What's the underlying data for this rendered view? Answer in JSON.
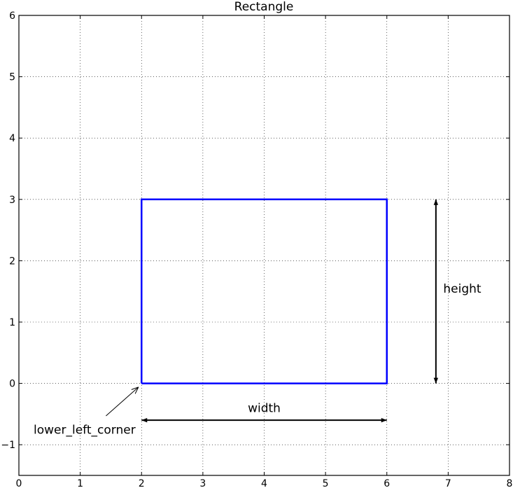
{
  "chart_data": {
    "type": "line",
    "title": "Rectangle",
    "xlabel": "",
    "ylabel": "",
    "xlim": [
      0,
      8
    ],
    "ylim": [
      -1.5,
      6
    ],
    "x_ticks": [
      "0",
      "1",
      "2",
      "3",
      "4",
      "5",
      "6",
      "7",
      "8"
    ],
    "y_ticks": [
      "−1",
      "0",
      "1",
      "2",
      "3",
      "4",
      "5",
      "6"
    ],
    "grid": true,
    "series": [
      {
        "x": [
          2,
          6,
          6,
          2,
          2
        ],
        "y": [
          0,
          0,
          3,
          3,
          0
        ],
        "color": "#0000ff"
      }
    ],
    "annotations": [
      {
        "text": "width",
        "x": 4,
        "y": -0.4,
        "arrow": {
          "from": [
            2,
            -0.6
          ],
          "to": [
            6,
            -0.6
          ],
          "style": "double"
        }
      },
      {
        "text": "height",
        "x": 6.92,
        "y": 1.55,
        "arrow": {
          "from": [
            6.8,
            0
          ],
          "to": [
            6.8,
            3
          ],
          "style": "double"
        }
      },
      {
        "text": "lower_left_corner",
        "x": 0.24,
        "y": -0.75,
        "arrow": {
          "from": [
            1.42,
            -0.53
          ],
          "to": [
            1.95,
            -0.06
          ],
          "style": "single"
        }
      }
    ]
  }
}
